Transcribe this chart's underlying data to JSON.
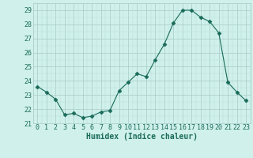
{
  "x": [
    0,
    1,
    2,
    3,
    4,
    5,
    6,
    7,
    8,
    9,
    10,
    11,
    12,
    13,
    14,
    15,
    16,
    17,
    18,
    19,
    20,
    21,
    22,
    23
  ],
  "y": [
    23.6,
    23.2,
    22.7,
    21.6,
    21.7,
    21.4,
    21.5,
    21.8,
    21.9,
    23.3,
    23.9,
    24.5,
    24.3,
    25.5,
    26.6,
    28.1,
    29.0,
    29.0,
    28.5,
    28.2,
    27.4,
    23.9,
    23.2,
    22.6
  ],
  "line_color": "#1a6b5a",
  "marker": "D",
  "marker_size": 2.5,
  "bg_color": "#cff0eb",
  "grid_color_major": "#a8ccc8",
  "grid_color_minor": "#b8ddd8",
  "xlabel": "Humidex (Indice chaleur)",
  "ylim": [
    21,
    29.5
  ],
  "xlim": [
    -0.5,
    23.5
  ],
  "yticks": [
    21,
    22,
    23,
    24,
    25,
    26,
    27,
    28,
    29
  ],
  "xticks": [
    0,
    1,
    2,
    3,
    4,
    5,
    6,
    7,
    8,
    9,
    10,
    11,
    12,
    13,
    14,
    15,
    16,
    17,
    18,
    19,
    20,
    21,
    22,
    23
  ],
  "label_fontsize": 7,
  "tick_fontsize": 6
}
